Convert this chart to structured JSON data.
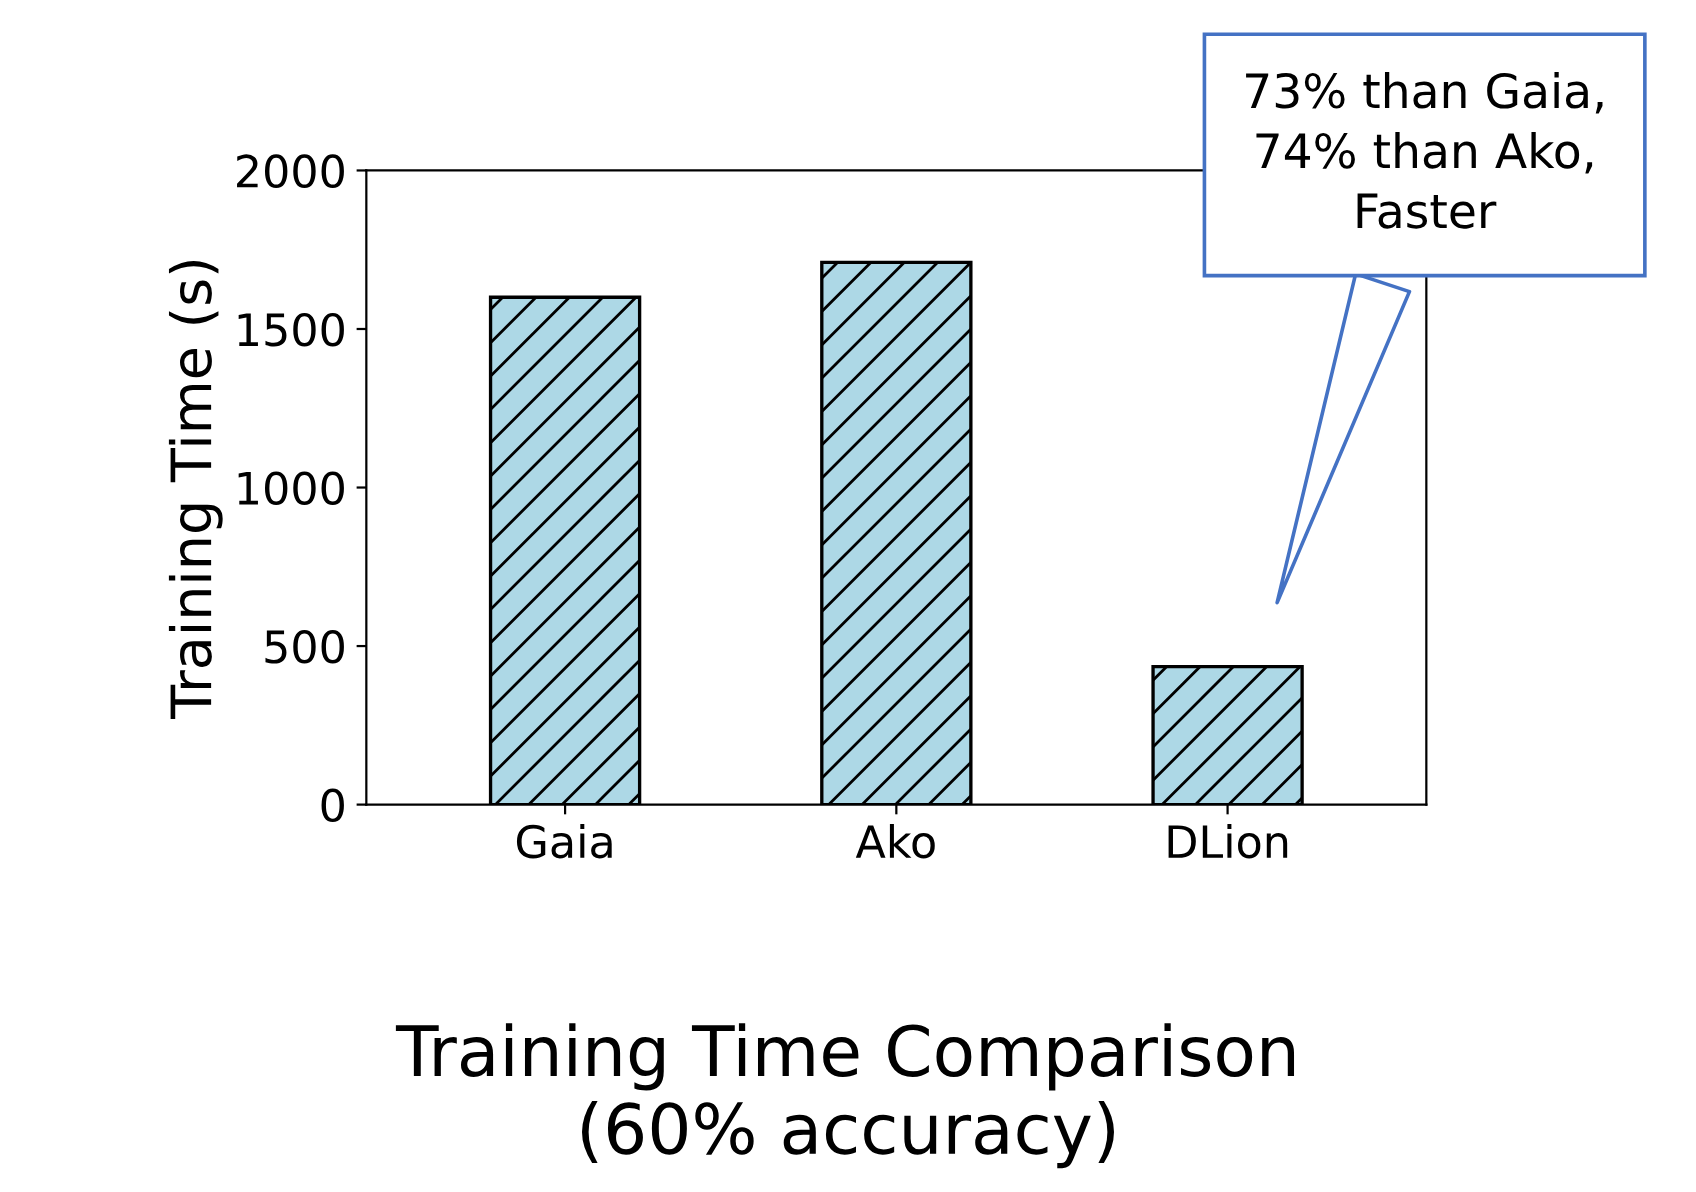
{
  "chart_data": {
    "type": "bar",
    "title": "Training Time Comparison\n(60% accuracy)",
    "ylabel": "Training Time (s)",
    "categories": [
      "Gaia",
      "Ako",
      "DLion"
    ],
    "values": [
      1600,
      1710,
      435
    ],
    "color": "#add8e6",
    "ylim": [
      0,
      2000
    ],
    "yticks": [
      0,
      500,
      1000,
      1500,
      2000
    ],
    "grid": false,
    "legend": false,
    "annotations": [
      "73% than Gaia,\n74% than Ako,\nFaster"
    ]
  }
}
